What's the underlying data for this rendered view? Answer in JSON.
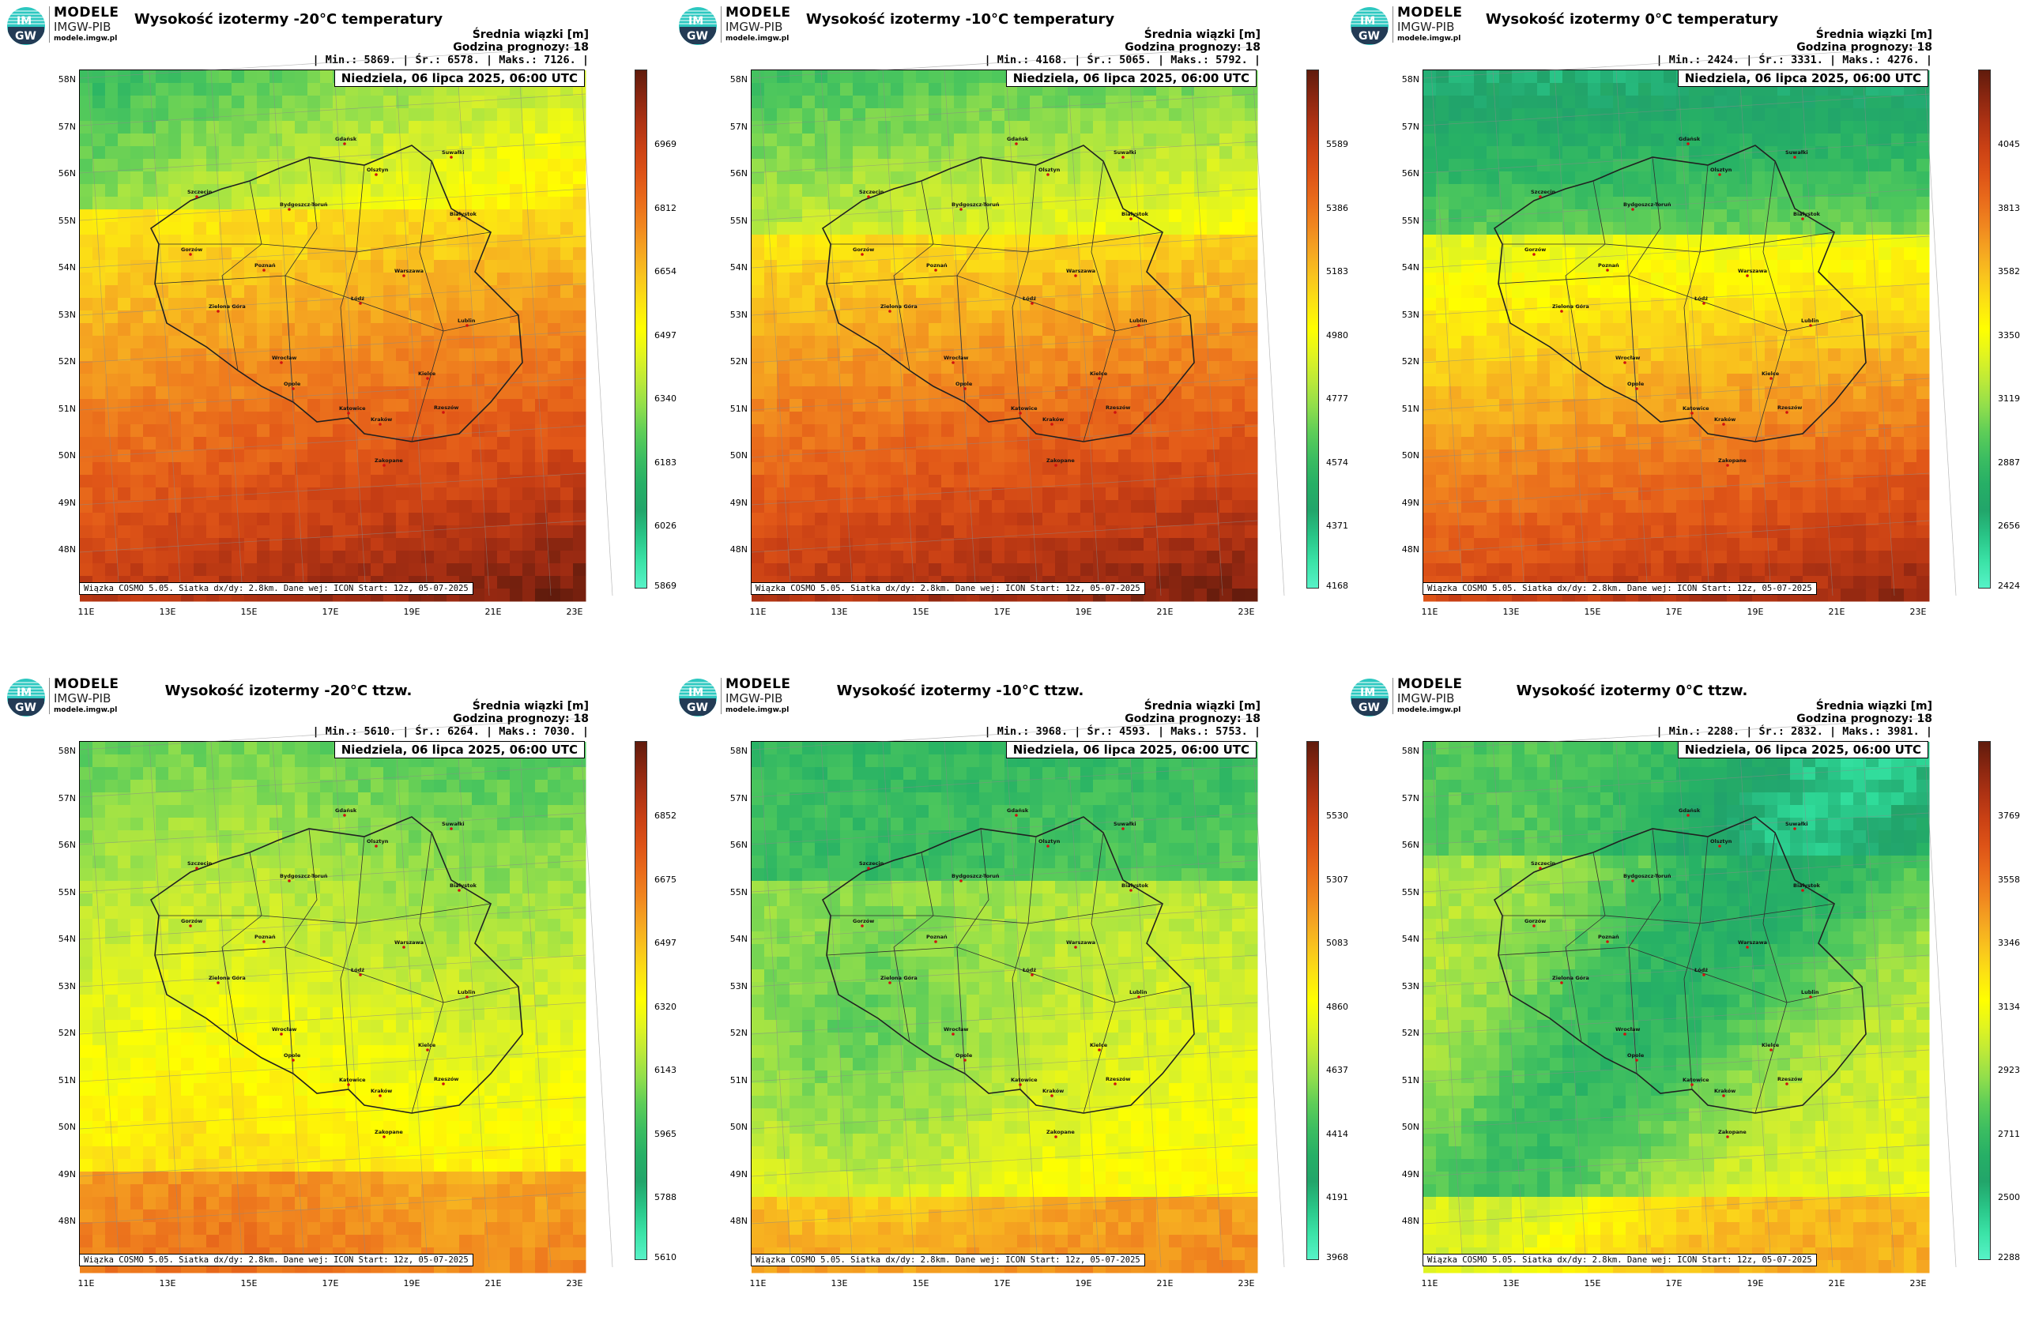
{
  "colors": {
    "warm": [
      "#ffff00",
      "#fbd71a",
      "#f6aa21",
      "#ef7d1e",
      "#e25818",
      "#c73e14",
      "#9b2a12",
      "#601b0c"
    ],
    "cool": [
      "#ffff00",
      "#d4ef2d",
      "#97e04a",
      "#4fc85c",
      "#27b265",
      "#21a36b",
      "#2fdc9a",
      "#57f2c7"
    ]
  },
  "brand": {
    "line1": "MODELE",
    "line2": "IMGW-PIB",
    "line3": "modele.imgw.pl",
    "logo_text": "IM GW"
  },
  "common": {
    "avg_label": "Średnia wiązki [m]",
    "forecast_hour": "Godzina prognozy: 18",
    "date": "Niedziela, 06 lipca 2025, 06:00 UTC",
    "footer": "Wiązka COSMO 5.05. Siatka dx/dy: 2.8km. Dane wej: ICON Start: 12z, 05-07-2025",
    "lat_labels": [
      "58N",
      "57N",
      "56N",
      "55N",
      "54N",
      "53N",
      "52N",
      "51N",
      "50N",
      "49N",
      "48N"
    ],
    "lon_labels": [
      "11E",
      "13E",
      "15E",
      "17E",
      "19E",
      "21E",
      "23E"
    ]
  },
  "cities": [
    "Gdańsk",
    "Suwałki",
    "Olsztyn",
    "Szczecin",
    "Bydgoszcz-Toruń",
    "Białystok",
    "Gorzów",
    "Poznań",
    "Warszawa",
    "Zielona Góra",
    "Łódź",
    "Lublin",
    "Wrocław",
    "Kielce",
    "Opole",
    "Rzeszów",
    "Katowice",
    "Kraków",
    "Zakopane"
  ],
  "panels": [
    {
      "title": "Wysokość izotermy -20°C temperatury",
      "stats": "| Min.:   5869. | Śr.:   6578. | Maks.:   7126. |",
      "min": 5869,
      "max": 7126,
      "ticks": [
        "6969",
        "6812",
        "6654",
        "6497",
        "6340",
        "6183",
        "6026",
        "5869"
      ]
    },
    {
      "title": "Wysokość izotermy -10°C temperatury",
      "stats": "| Min.:   4168. | Śr.:   5065. | Maks.:   5792. |",
      "min": 4168,
      "max": 5792,
      "ticks": [
        "5589",
        "5386",
        "5183",
        "4980",
        "4777",
        "4574",
        "4371",
        "4168"
      ]
    },
    {
      "title": "Wysokość izotermy 0°C temperatury",
      "stats": "| Min.:   2424. | Śr.:   3331. | Maks.:   4276. |",
      "min": 2424,
      "max": 4276,
      "ticks": [
        "4045",
        "3813",
        "3582",
        "3350",
        "3119",
        "2887",
        "2656",
        "2424"
      ]
    },
    {
      "title": "Wysokość izotermy -20°C ttzw.",
      "stats": "| Min.:   5610. | Śr.:   6264. | Maks.:   7030. |",
      "min": 5610,
      "max": 7030,
      "ticks": [
        "6852",
        "6675",
        "6497",
        "6320",
        "6143",
        "5965",
        "5788",
        "5610"
      ]
    },
    {
      "title": "Wysokość izotermy -10°C ttzw.",
      "stats": "| Min.:   3968. | Śr.:   4593. | Maks.:   5753. |",
      "min": 3968,
      "max": 5753,
      "ticks": [
        "5530",
        "5307",
        "5083",
        "4860",
        "4637",
        "4414",
        "4191",
        "3968"
      ]
    },
    {
      "title": "Wysokość izotermy 0°C ttzw.",
      "stats": "| Min.:   2288. | Śr.:   2832. | Maks.:   3981. |",
      "min": 2288,
      "max": 3981,
      "ticks": [
        "3769",
        "3558",
        "3346",
        "3134",
        "2923",
        "2711",
        "2500",
        "2288"
      ]
    }
  ]
}
